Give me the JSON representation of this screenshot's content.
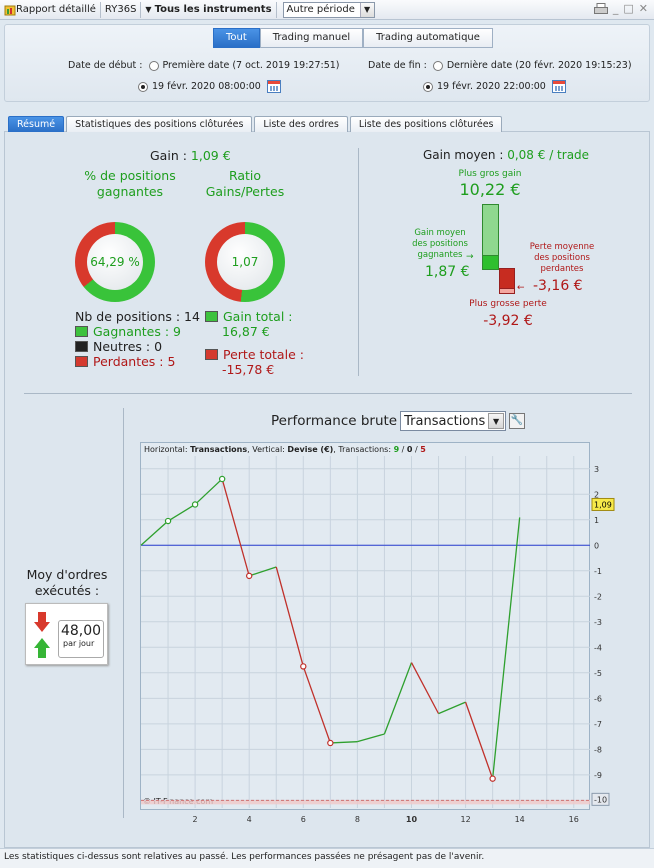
{
  "titlebar": {
    "report_label": "Rapport détaillé",
    "account": "RY36S",
    "instruments": "Tous les instruments",
    "period": "Autre période"
  },
  "filters": {
    "segments": [
      "Tout",
      "Trading manuel",
      "Trading automatique"
    ],
    "start_label": "Date de début :",
    "start_opt1": "Première date (7 oct. 2019 19:27:51)",
    "start_opt2": "19 févr. 2020 08:00:00",
    "end_label": "Date de fin :",
    "end_opt1": "Dernière date (20 févr. 2020 19:15:23)",
    "end_opt2": "19 févr. 2020 22:00:00"
  },
  "tabs": [
    "Résumé",
    "Statistiques des positions clôturées",
    "Liste des ordres",
    "Liste des positions clôturées"
  ],
  "summary": {
    "gain_label": "Gain :",
    "gain_value": "1,09 €",
    "pct_title": "% de positions gagnantes",
    "pct_value": "64,29 %",
    "pct_fraction": 0.6429,
    "ratio_title": "Ratio Gains/Pertes",
    "ratio_value": "1,07",
    "ratio_fraction": 0.517,
    "nb_positions": "Nb de positions : 14",
    "winners": "Gagnantes : 9",
    "neutral": "Neutres : 0",
    "losers": "Perdantes : 5",
    "gain_total_label": "Gain total :",
    "gain_total_value": "16,87 €",
    "loss_total_label": "Perte totale :",
    "loss_total_value": "-15,78 €"
  },
  "avg": {
    "title_label": "Gain moyen :",
    "title_value": "0,08 € / trade",
    "max_gain_label": "Plus gros gain",
    "max_gain_value": "10,22 €",
    "avg_win_label": "Gain moyen des positions gagnantes",
    "avg_win_value": "1,87 €",
    "avg_loss_label": "Perte moyenne des positions perdantes",
    "avg_loss_value": "-3,16 €",
    "max_loss_label": "Plus grosse perte",
    "max_loss_value": "-3,92 €"
  },
  "orders": {
    "label": "Moy d'ordres exécutés :",
    "value": "48,00",
    "unit": "par jour"
  },
  "perf": {
    "title": "Performance brute",
    "select": "Transactions",
    "info_h": "Horizontal: ",
    "info_h_val": "Transactions",
    "info_v": ", Vertical: ",
    "info_v_val": "Devise (€)",
    "info_t": ", Transactions: ",
    "info_win": "9",
    "info_sep1": " / ",
    "info_neu": "0",
    "info_sep2": " / ",
    "info_los": "5",
    "copyright": "© IT-Finance.com",
    "last_label": "1,09",
    "min_label": "-10"
  },
  "chart_data": {
    "type": "line",
    "x": [
      0,
      1,
      2,
      3,
      4,
      5,
      6,
      7,
      8,
      9,
      10,
      11,
      12,
      13,
      14
    ],
    "y": [
      0,
      0.95,
      1.6,
      2.6,
      -1.2,
      -0.85,
      -4.75,
      -7.75,
      -7.7,
      -7.4,
      -4.6,
      -6.6,
      -6.15,
      -9.15,
      1.09
    ],
    "markers_at": [
      1,
      2,
      3,
      4,
      6,
      7,
      13
    ],
    "xlim": [
      0,
      16.6
    ],
    "ylim": [
      -10.3,
      3.5
    ],
    "xticks": [
      2,
      4,
      6,
      8,
      10,
      12,
      14,
      16
    ],
    "yticks": [
      3,
      2,
      1,
      0,
      -1,
      -2,
      -3,
      -4,
      -5,
      -6,
      -7,
      -8,
      -9,
      -10
    ],
    "colors": {
      "up": "#2ea02e",
      "down": "#c0302a",
      "zero": "#2a3fd0"
    },
    "grid": true
  },
  "footer": "Les statistiques ci-dessus sont relatives au passé. Les performances passées ne présagent pas de l'avenir."
}
